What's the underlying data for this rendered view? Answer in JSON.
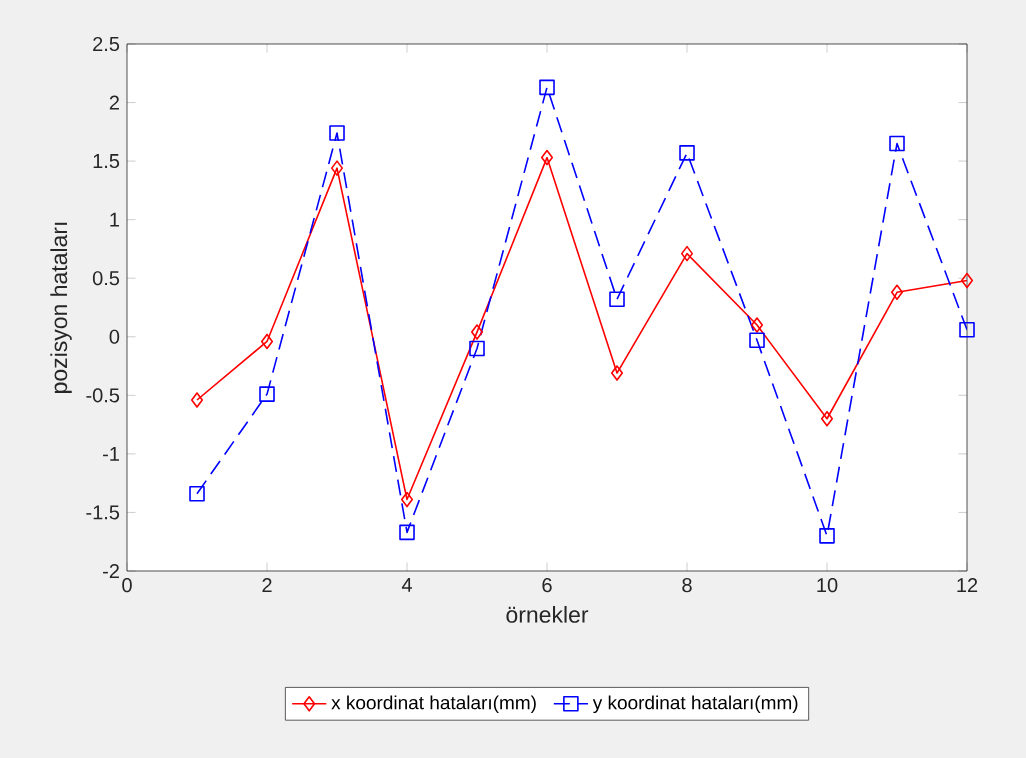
{
  "chart_data": {
    "type": "line",
    "xlabel": "örnekler",
    "ylabel": "pozisyon hataları",
    "x": [
      1,
      2,
      3,
      4,
      5,
      6,
      7,
      8,
      9,
      10,
      11,
      12
    ],
    "series": [
      {
        "name": "x koordinat hataları(mm)",
        "color": "#ff0000",
        "marker": "diamond",
        "line_style": "solid",
        "values": [
          -0.54,
          -0.04,
          1.44,
          -1.39,
          0.04,
          1.53,
          -0.31,
          0.71,
          0.1,
          -0.7,
          0.38,
          0.48
        ]
      },
      {
        "name": "y koordinat hataları(mm)",
        "color": "#0000ff",
        "marker": "square",
        "line_style": "dashed",
        "values": [
          -1.34,
          -0.49,
          1.74,
          -1.67,
          -0.1,
          2.13,
          0.32,
          1.57,
          -0.03,
          -1.7,
          1.65,
          0.06
        ]
      }
    ],
    "xlim": [
      0,
      12
    ],
    "ylim": [
      -2,
      2.5
    ],
    "xticks": [
      0,
      2,
      4,
      6,
      8,
      10,
      12
    ],
    "yticks": [
      -2,
      -1.5,
      -1,
      -0.5,
      0,
      0.5,
      1,
      1.5,
      2,
      2.5
    ],
    "grid": false,
    "legend": "bottom"
  }
}
